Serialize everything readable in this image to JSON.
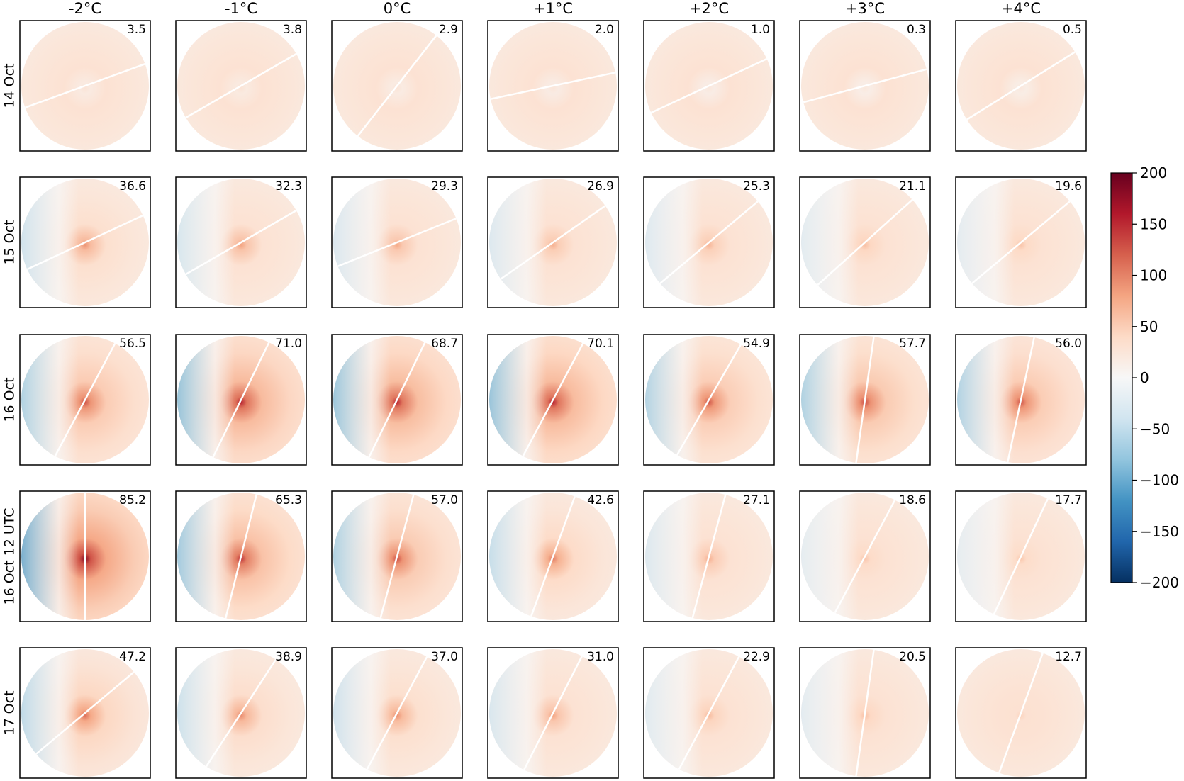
{
  "chart_data": {
    "type": "heatmap",
    "title": "",
    "columns": [
      "-2$^\\circ$C",
      "-1$^\\circ$C",
      "0$^\\circ$C",
      "+1$^\\circ$C",
      "+2$^\\circ$C",
      "+3$^\\circ$C",
      "+4$^\\circ$C"
    ],
    "column_labels": [
      "-2°C",
      "-1°C",
      "0°C",
      "+1°C",
      "+2°C",
      "+3°C",
      "+4°C"
    ],
    "rows": [
      "14 Oct",
      "15 Oct",
      "16 Oct",
      "16 Oct 12 UTC",
      "17 Oct"
    ],
    "panel_values": [
      [
        "3.5",
        "3.8",
        "2.9",
        "2.0",
        "1.0",
        "0.3",
        "0.5"
      ],
      [
        "36.6",
        "32.3",
        "29.3",
        "26.9",
        "25.3",
        "21.1",
        "19.6"
      ],
      [
        "56.5",
        "71.0",
        "68.7",
        "70.1",
        "54.9",
        "57.7",
        "56.0"
      ],
      [
        "85.2",
        "65.3",
        "57.0",
        "42.6",
        "27.1",
        "18.6",
        "17.7"
      ],
      [
        "47.2",
        "38.9",
        "37.0",
        "31.0",
        "22.9",
        "20.5",
        "12.7"
      ]
    ],
    "line_angle_deg": [
      [
        20,
        30,
        52,
        12,
        25,
        15,
        32
      ],
      [
        25,
        30,
        22,
        35,
        40,
        42,
        40
      ],
      [
        62,
        64,
        64,
        62,
        60,
        82,
        78
      ],
      [
        90,
        76,
        75,
        70,
        75,
        62,
        65
      ],
      [
        40,
        57,
        62,
        63,
        62,
        82,
        70
      ]
    ],
    "colorbar": {
      "min": -200,
      "max": 200,
      "ticks": [
        200,
        150,
        100,
        50,
        0,
        -50,
        -100,
        -150,
        -200
      ],
      "tick_labels": [
        "200",
        "150",
        "100",
        "50",
        "0",
        "−50",
        "−100",
        "−150",
        "−200"
      ],
      "colormap": "RdBu_r",
      "colors": [
        "#053061",
        "#2166ac",
        "#4393c3",
        "#92c5de",
        "#d1e5f0",
        "#f7f7f7",
        "#fddbc7",
        "#f4a582",
        "#d6604d",
        "#b2182b",
        "#67001f"
      ]
    }
  }
}
